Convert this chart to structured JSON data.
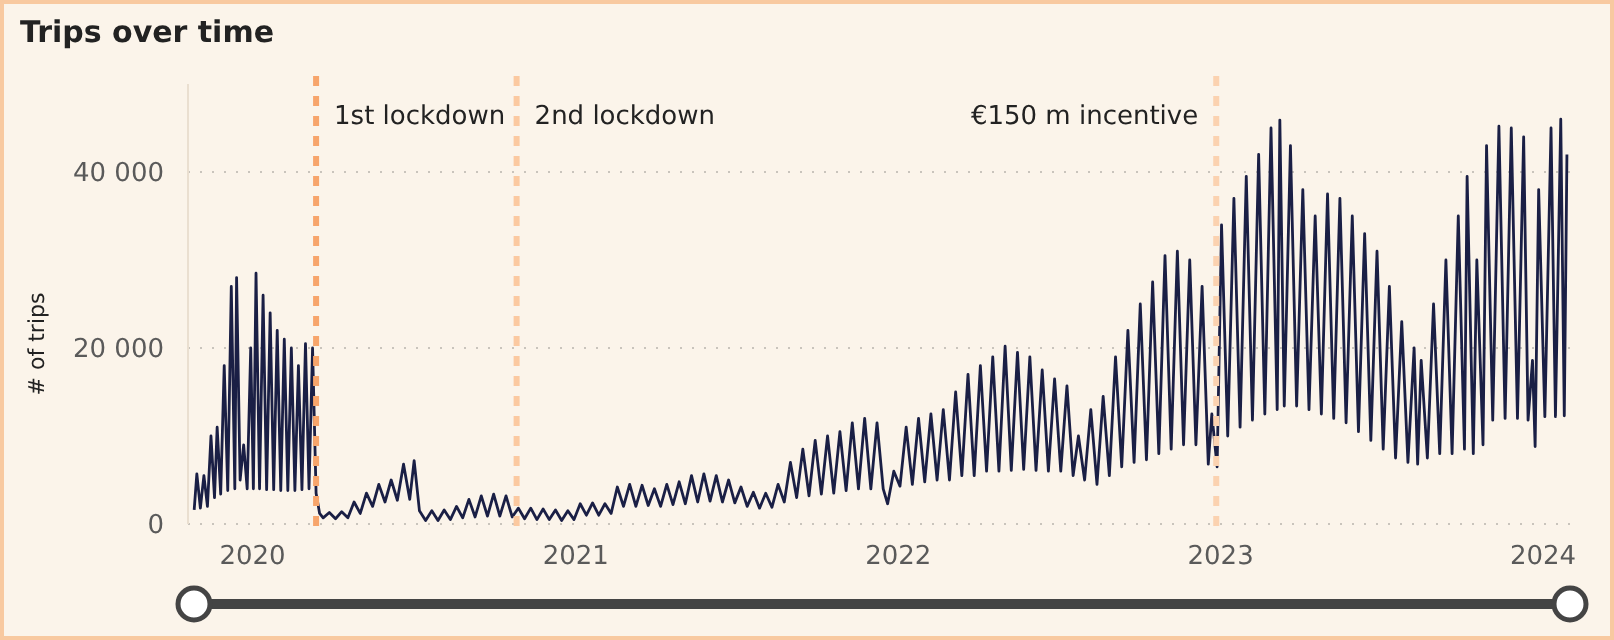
{
  "chart_data": {
    "type": "line",
    "title": "Trips over time",
    "ylabel": "# of trips",
    "xlim": [
      "2019-10-20",
      "2024-02-05"
    ],
    "ylim": [
      0,
      50000
    ],
    "xticks": [
      {
        "value": "2020-01-01",
        "label": "2020"
      },
      {
        "value": "2021-01-01",
        "label": "2021"
      },
      {
        "value": "2022-01-01",
        "label": "2022"
      },
      {
        "value": "2023-01-01",
        "label": "2023"
      },
      {
        "value": "2024-01-01",
        "label": "2024"
      }
    ],
    "yticks": [
      0,
      {
        "value": 20000,
        "label": "20 000"
      },
      {
        "value": 40000,
        "label": "40 000"
      }
    ],
    "grid": "y",
    "ref_lines": [
      {
        "axis": "x",
        "value": "2020-03-13",
        "label": "1st lockdown",
        "color": "#f7a56b",
        "line_style": "dashed"
      },
      {
        "axis": "x",
        "value": "2020-10-26",
        "label": "2nd lockdown",
        "color": "#fbc9a0",
        "line_style": "dashed"
      },
      {
        "axis": "x",
        "value": "2022-12-27",
        "label": "€150 m incentive",
        "color": "#fbd2b0",
        "line_style": "dashed"
      }
    ],
    "series": [
      {
        "color": "#1a1f45",
        "x": [
          "2019-10-27",
          "2019-10-30",
          "2019-11-03",
          "2019-11-07",
          "2019-11-11",
          "2019-11-15",
          "2019-11-19",
          "2019-11-22",
          "2019-11-26",
          "2019-11-30",
          "2019-12-04",
          "2019-12-08",
          "2019-12-12",
          "2019-12-14",
          "2019-12-18",
          "2019-12-22",
          "2019-12-26",
          "2019-12-30",
          "2020-01-02",
          "2020-01-05",
          "2020-01-09",
          "2020-01-13",
          "2020-01-17",
          "2020-01-21",
          "2020-01-25",
          "2020-01-29",
          "2020-02-02",
          "2020-02-06",
          "2020-02-10",
          "2020-02-14",
          "2020-02-18",
          "2020-02-22",
          "2020-02-26",
          "2020-03-01",
          "2020-03-05",
          "2020-03-09",
          "2020-03-13",
          "2020-03-17",
          "2020-03-21",
          "2020-03-28",
          "2020-04-04",
          "2020-04-11",
          "2020-04-18",
          "2020-04-25",
          "2020-05-02",
          "2020-05-09",
          "2020-05-16",
          "2020-05-23",
          "2020-05-30",
          "2020-06-06",
          "2020-06-13",
          "2020-06-20",
          "2020-06-27",
          "2020-07-02",
          "2020-07-08",
          "2020-07-15",
          "2020-07-22",
          "2020-07-29",
          "2020-08-05",
          "2020-08-12",
          "2020-08-19",
          "2020-08-26",
          "2020-09-02",
          "2020-09-09",
          "2020-09-16",
          "2020-09-23",
          "2020-09-30",
          "2020-10-07",
          "2020-10-14",
          "2020-10-21",
          "2020-10-28",
          "2020-11-04",
          "2020-11-11",
          "2020-11-18",
          "2020-11-25",
          "2020-12-02",
          "2020-12-09",
          "2020-12-16",
          "2020-12-23",
          "2020-12-30",
          "2021-01-06",
          "2021-01-13",
          "2021-01-20",
          "2021-01-27",
          "2021-02-03",
          "2021-02-10",
          "2021-02-17",
          "2021-02-24",
          "2021-03-03",
          "2021-03-10",
          "2021-03-17",
          "2021-03-24",
          "2021-03-31",
          "2021-04-07",
          "2021-04-14",
          "2021-04-21",
          "2021-04-28",
          "2021-05-05",
          "2021-05-12",
          "2021-05-19",
          "2021-05-26",
          "2021-06-02",
          "2021-06-09",
          "2021-06-16",
          "2021-06-23",
          "2021-06-30",
          "2021-07-07",
          "2021-07-14",
          "2021-07-21",
          "2021-07-28",
          "2021-08-04",
          "2021-08-11",
          "2021-08-18",
          "2021-08-25",
          "2021-09-01",
          "2021-09-08",
          "2021-09-15",
          "2021-09-22",
          "2021-09-29",
          "2021-10-06",
          "2021-10-13",
          "2021-10-20",
          "2021-10-27",
          "2021-11-03",
          "2021-11-10",
          "2021-11-17",
          "2021-11-24",
          "2021-12-01",
          "2021-12-08",
          "2021-12-15",
          "2021-12-20",
          "2021-12-27",
          "2022-01-03",
          "2022-01-10",
          "2022-01-17",
          "2022-01-24",
          "2022-01-31",
          "2022-02-07",
          "2022-02-14",
          "2022-02-21",
          "2022-02-28",
          "2022-03-07",
          "2022-03-14",
          "2022-03-21",
          "2022-03-28",
          "2022-04-04",
          "2022-04-11",
          "2022-04-18",
          "2022-04-25",
          "2022-05-02",
          "2022-05-09",
          "2022-05-16",
          "2022-05-23",
          "2022-05-30",
          "2022-06-06",
          "2022-06-13",
          "2022-06-20",
          "2022-06-27",
          "2022-07-04",
          "2022-07-11",
          "2022-07-18",
          "2022-07-24",
          "2022-07-31",
          "2022-08-07",
          "2022-08-14",
          "2022-08-21",
          "2022-08-28",
          "2022-09-04",
          "2022-09-11",
          "2022-09-18",
          "2022-09-25",
          "2022-10-02",
          "2022-10-09",
          "2022-10-16",
          "2022-10-23",
          "2022-10-30",
          "2022-11-06",
          "2022-11-13",
          "2022-11-20",
          "2022-11-27",
          "2022-12-04",
          "2022-12-11",
          "2022-12-18",
          "2022-12-22",
          "2022-12-28",
          "2023-01-02",
          "2023-01-09",
          "2023-01-16",
          "2023-01-23",
          "2023-01-30",
          "2023-02-06",
          "2023-02-13",
          "2023-02-20",
          "2023-02-27",
          "2023-03-06",
          "2023-03-09",
          "2023-03-14",
          "2023-03-21",
          "2023-03-28",
          "2023-04-04",
          "2023-04-11",
          "2023-04-18",
          "2023-04-25",
          "2023-05-02",
          "2023-05-09",
          "2023-05-16",
          "2023-05-23",
          "2023-05-30",
          "2023-06-06",
          "2023-06-13",
          "2023-06-20",
          "2023-06-27",
          "2023-07-04",
          "2023-07-11",
          "2023-07-18",
          "2023-07-25",
          "2023-08-01",
          "2023-08-08",
          "2023-08-12",
          "2023-08-16",
          "2023-08-23",
          "2023-08-30",
          "2023-09-06",
          "2023-09-13",
          "2023-09-20",
          "2023-09-27",
          "2023-10-04",
          "2023-10-07",
          "2023-10-14",
          "2023-10-18",
          "2023-10-25",
          "2023-10-29",
          "2023-11-05",
          "2023-11-12",
          "2023-11-19",
          "2023-11-26",
          "2023-12-03",
          "2023-12-10",
          "2023-12-15",
          "2023-12-20",
          "2023-12-23",
          "2023-12-27",
          "2024-01-03",
          "2024-01-10",
          "2024-01-15",
          "2024-01-21",
          "2024-01-25",
          "2024-01-28"
        ],
        "values": [
          1600,
          5700,
          1800,
          5500,
          2000,
          10000,
          3000,
          11000,
          3400,
          18000,
          3800,
          27000,
          4000,
          28000,
          5000,
          9000,
          4000,
          20000,
          4000,
          28500,
          4000,
          26000,
          3900,
          24000,
          3900,
          22000,
          3800,
          21000,
          3800,
          20000,
          3800,
          18000,
          3900,
          20500,
          4000,
          20000,
          3500,
          1200,
          700,
          1300,
          600,
          1400,
          700,
          2500,
          1200,
          3500,
          2000,
          4500,
          2500,
          5000,
          2700,
          6800,
          2800,
          7200,
          1500,
          400,
          1500,
          400,
          1600,
          500,
          2000,
          700,
          2800,
          800,
          3200,
          900,
          3400,
          900,
          3200,
          800,
          1800,
          600,
          1800,
          500,
          1700,
          500,
          1600,
          400,
          1500,
          500,
          2300,
          1000,
          2400,
          1000,
          2300,
          1200,
          4200,
          2000,
          4500,
          2000,
          4400,
          2100,
          4000,
          2000,
          4500,
          2200,
          4800,
          2300,
          5500,
          2500,
          5700,
          2600,
          5500,
          2500,
          5000,
          2400,
          4200,
          2000,
          3600,
          1800,
          3500,
          1900,
          4500,
          2500,
          7000,
          3000,
          8500,
          3200,
          9500,
          3400,
          10000,
          3500,
          10500,
          3800,
          11500,
          4000,
          12000,
          4000,
          11500,
          4000,
          2300,
          6000,
          4300,
          11000,
          4500,
          12000,
          4800,
          12500,
          5000,
          13000,
          5000,
          15000,
          5500,
          17000,
          5500,
          18000,
          6000,
          19000,
          6000,
          20200,
          6100,
          19500,
          6200,
          19000,
          6100,
          17500,
          6000,
          16500,
          6000,
          15700,
          5500,
          10000,
          5000,
          13000,
          4500,
          14500,
          5500,
          19000,
          6500,
          22000,
          7000,
          25000,
          7300,
          27500,
          8000,
          30500,
          8500,
          31000,
          9000,
          30000,
          9000,
          27000,
          6800,
          12500,
          6500,
          34000,
          10000,
          37000,
          11000,
          39500,
          11800,
          42000,
          12500,
          45000,
          13000,
          45900,
          13400,
          43000,
          13400,
          38000,
          13000,
          35000,
          12500,
          37500,
          12000,
          37000,
          11500,
          35000,
          10500,
          33000,
          9500,
          31000,
          8500,
          27000,
          7500,
          23000,
          7000,
          20000,
          6800,
          18600,
          7500,
          25000,
          8000,
          30000,
          8000,
          35000,
          8500,
          39500,
          8000,
          30000,
          9000,
          43000,
          11800,
          45200,
          12000,
          45000,
          12000,
          44000,
          11800,
          18600,
          8800,
          38000,
          12200,
          45000,
          12200,
          46000,
          12300,
          42000
        ]
      }
    ]
  }
}
